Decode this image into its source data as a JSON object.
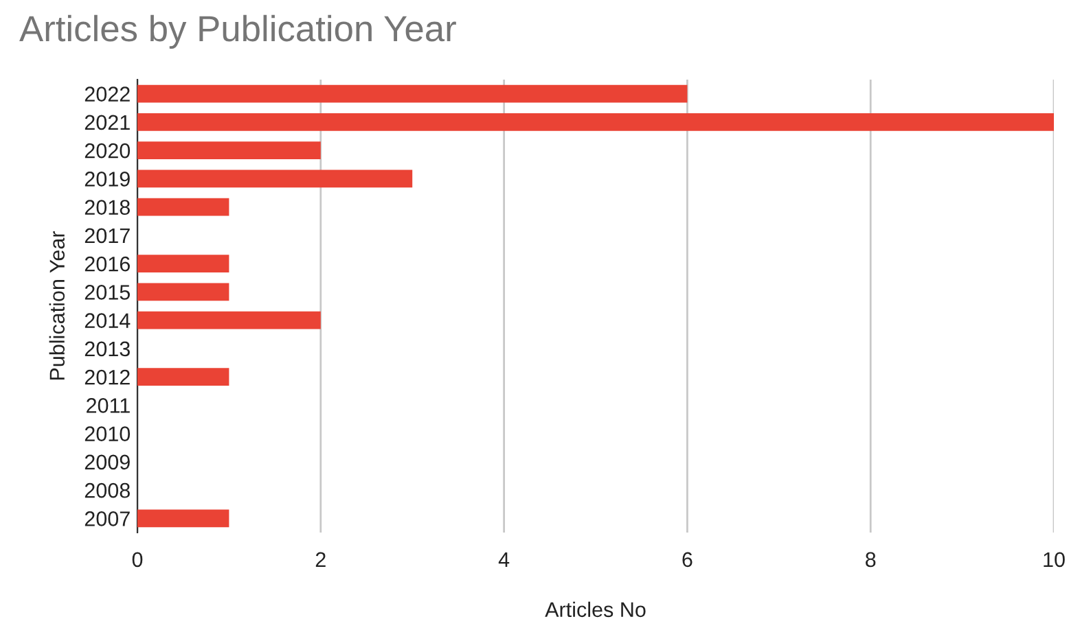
{
  "chart_data": {
    "type": "bar",
    "orientation": "horizontal",
    "title": "Articles by Publication Year",
    "xlabel": "Articles No",
    "ylabel": "Publication Year",
    "categories": [
      "2022",
      "2021",
      "2020",
      "2019",
      "2018",
      "2017",
      "2016",
      "2015",
      "2014",
      "2013",
      "2012",
      "2011",
      "2010",
      "2009",
      "2008",
      "2007"
    ],
    "values": [
      6,
      10,
      2,
      3,
      1,
      0,
      1,
      1,
      2,
      0,
      1,
      0,
      0,
      0,
      0,
      1
    ],
    "color": "#ea4335",
    "xlim": [
      0,
      10
    ],
    "xticks": [
      0,
      2,
      4,
      6,
      8,
      10
    ],
    "grid": "x",
    "legend": false
  }
}
